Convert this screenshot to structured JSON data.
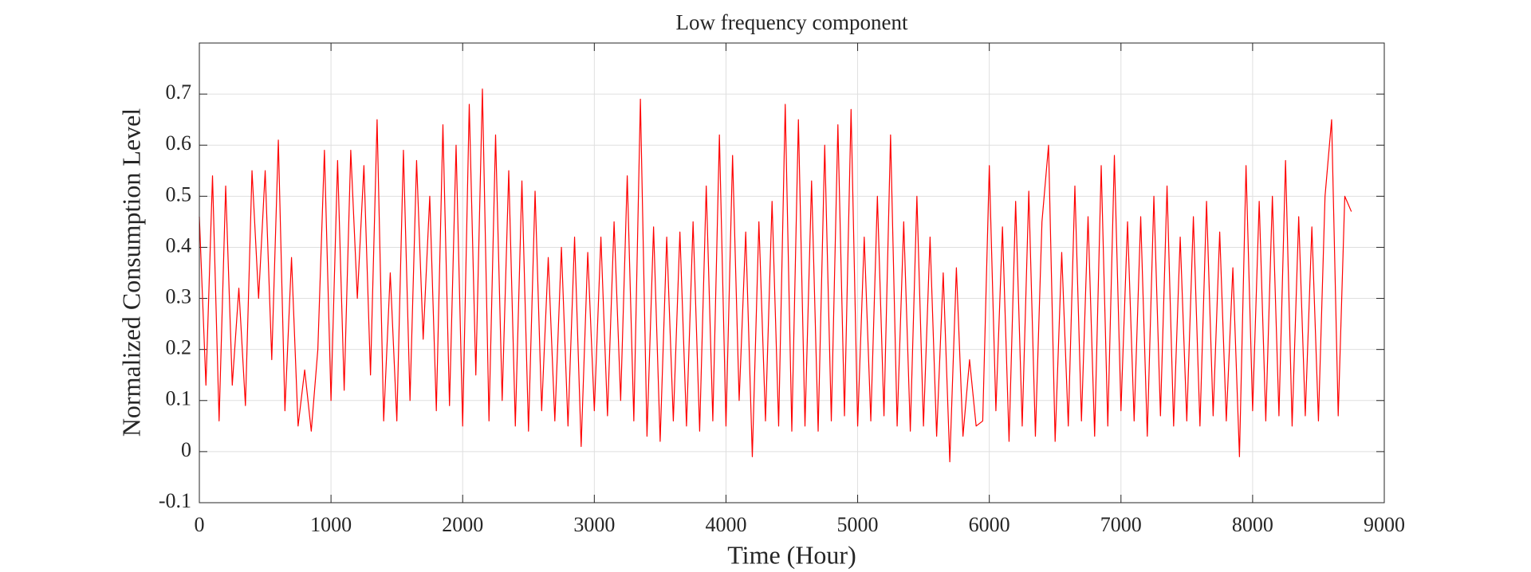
{
  "chart_data": {
    "type": "line",
    "title": "Low frequency component",
    "x_label": "Time (Hour)",
    "y_label": "Normalized Consumption Level",
    "color": "#ff0000",
    "grid": true,
    "xlim": [
      0,
      9000
    ],
    "xticks": [
      0,
      1000,
      2000,
      3000,
      4000,
      5000,
      6000,
      7000,
      8000,
      9000
    ],
    "ylim": [
      -0.1,
      0.8
    ],
    "yticks": [
      -0.1,
      0,
      0.1,
      0.2,
      0.3,
      0.4,
      0.5,
      0.6,
      0.7
    ],
    "x": [
      0,
      50,
      100,
      150,
      200,
      250,
      300,
      350,
      400,
      450,
      500,
      550,
      600,
      650,
      700,
      750,
      800,
      850,
      900,
      950,
      1000,
      1050,
      1100,
      1150,
      1200,
      1250,
      1300,
      1350,
      1400,
      1450,
      1500,
      1550,
      1600,
      1650,
      1700,
      1750,
      1800,
      1850,
      1900,
      1950,
      2000,
      2050,
      2100,
      2150,
      2200,
      2250,
      2300,
      2350,
      2400,
      2450,
      2500,
      2550,
      2600,
      2650,
      2700,
      2750,
      2800,
      2850,
      2900,
      2950,
      3000,
      3050,
      3100,
      3150,
      3200,
      3250,
      3300,
      3350,
      3400,
      3450,
      3500,
      3550,
      3600,
      3650,
      3700,
      3750,
      3800,
      3850,
      3900,
      3950,
      4000,
      4050,
      4100,
      4150,
      4200,
      4250,
      4300,
      4350,
      4400,
      4450,
      4500,
      4550,
      4600,
      4650,
      4700,
      4750,
      4800,
      4850,
      4900,
      4950,
      5000,
      5050,
      5100,
      5150,
      5200,
      5250,
      5300,
      5350,
      5400,
      5450,
      5500,
      5550,
      5600,
      5650,
      5700,
      5750,
      5800,
      5850,
      5900,
      5950,
      6000,
      6050,
      6100,
      6150,
      6200,
      6250,
      6300,
      6350,
      6400,
      6450,
      6500,
      6550,
      6600,
      6650,
      6700,
      6750,
      6800,
      6850,
      6900,
      6950,
      7000,
      7050,
      7100,
      7150,
      7200,
      7250,
      7300,
      7350,
      7400,
      7450,
      7500,
      7550,
      7600,
      7650,
      7700,
      7750,
      7800,
      7850,
      7900,
      7950,
      8000,
      8050,
      8100,
      8150,
      8200,
      8250,
      8300,
      8350,
      8400,
      8450,
      8500,
      8550,
      8600,
      8650,
      8700,
      8750
    ],
    "values": [
      0.46,
      0.13,
      0.54,
      0.06,
      0.52,
      0.13,
      0.32,
      0.09,
      0.55,
      0.3,
      0.55,
      0.18,
      0.61,
      0.08,
      0.38,
      0.05,
      0.16,
      0.04,
      0.2,
      0.59,
      0.1,
      0.57,
      0.12,
      0.59,
      0.3,
      0.56,
      0.15,
      0.65,
      0.06,
      0.35,
      0.06,
      0.59,
      0.1,
      0.57,
      0.22,
      0.5,
      0.08,
      0.64,
      0.09,
      0.6,
      0.05,
      0.68,
      0.15,
      0.71,
      0.06,
      0.62,
      0.1,
      0.55,
      0.05,
      0.53,
      0.04,
      0.51,
      0.08,
      0.38,
      0.06,
      0.4,
      0.05,
      0.42,
      0.01,
      0.39,
      0.08,
      0.42,
      0.07,
      0.45,
      0.1,
      0.54,
      0.06,
      0.69,
      0.03,
      0.44,
      0.02,
      0.42,
      0.06,
      0.43,
      0.05,
      0.45,
      0.04,
      0.52,
      0.06,
      0.62,
      0.05,
      0.58,
      0.1,
      0.43,
      -0.01,
      0.45,
      0.06,
      0.49,
      0.05,
      0.68,
      0.04,
      0.65,
      0.05,
      0.53,
      0.04,
      0.6,
      0.06,
      0.64,
      0.07,
      0.67,
      0.05,
      0.42,
      0.06,
      0.5,
      0.07,
      0.62,
      0.05,
      0.45,
      0.04,
      0.5,
      0.05,
      0.42,
      0.03,
      0.35,
      -0.02,
      0.36,
      0.03,
      0.18,
      0.05,
      0.06,
      0.56,
      0.08,
      0.44,
      0.02,
      0.49,
      0.05,
      0.51,
      0.03,
      0.45,
      0.6,
      0.02,
      0.39,
      0.05,
      0.52,
      0.06,
      0.46,
      0.03,
      0.56,
      0.05,
      0.58,
      0.08,
      0.45,
      0.06,
      0.46,
      0.03,
      0.5,
      0.07,
      0.52,
      0.05,
      0.42,
      0.06,
      0.46,
      0.05,
      0.49,
      0.07,
      0.43,
      0.06,
      0.36,
      -0.01,
      0.56,
      0.08,
      0.49,
      0.06,
      0.5,
      0.07,
      0.57,
      0.05,
      0.46,
      0.07,
      0.44,
      0.06,
      0.5,
      0.65,
      0.07,
      0.5,
      0.47
    ]
  }
}
